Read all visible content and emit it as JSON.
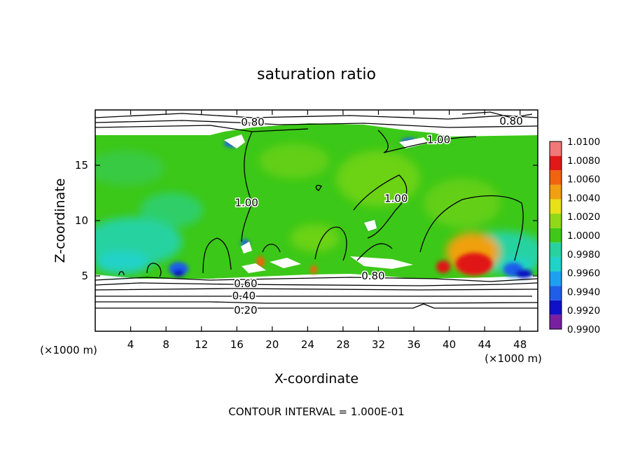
{
  "chart_data": {
    "type": "heatmap",
    "title": "saturation ratio",
    "xlabel": "X-coordinate",
    "ylabel": "Z-coordinate",
    "x_unit": "(×1000 m)",
    "footer": "CONTOUR INTERVAL = 1.000E-01",
    "xlim": [
      0,
      50
    ],
    "ylim": [
      0,
      20
    ],
    "x_ticks": [
      4,
      8,
      12,
      16,
      20,
      24,
      28,
      32,
      36,
      40,
      44,
      48
    ],
    "y_ticks": [
      5,
      10,
      15
    ],
    "colorbar": {
      "labels": [
        "0.9900",
        "0.9920",
        "0.9940",
        "0.9960",
        "0.9980",
        "1.0000",
        "1.0020",
        "1.0040",
        "1.0060",
        "1.0080",
        "1.0100"
      ],
      "colors": [
        "#7a1fa0",
        "#1010c8",
        "#1e5ee8",
        "#1ea0f0",
        "#20d2c8",
        "#28d2a0",
        "#40c818",
        "#90d818",
        "#e8e018",
        "#f0a010",
        "#f06410",
        "#e01818",
        "#f07878"
      ]
    },
    "contour_labels": [
      {
        "text": "0.80",
        "x": 17.8,
        "z": 18.9
      },
      {
        "text": "0.80",
        "x": 47.0,
        "z": 19.0
      },
      {
        "text": "1.00",
        "x": 38.8,
        "z": 17.3
      },
      {
        "text": "1.00",
        "x": 17.1,
        "z": 11.6
      },
      {
        "text": "1.00",
        "x": 34.0,
        "z": 12.0
      },
      {
        "text": "0.80",
        "x": 31.4,
        "z": 5.0
      },
      {
        "text": "0.60",
        "x": 17.0,
        "z": 4.3
      },
      {
        "text": "0.40",
        "x": 16.8,
        "z": 3.2
      },
      {
        "text": "0.20",
        "x": 17.0,
        "z": 1.9
      }
    ],
    "grid": false
  }
}
